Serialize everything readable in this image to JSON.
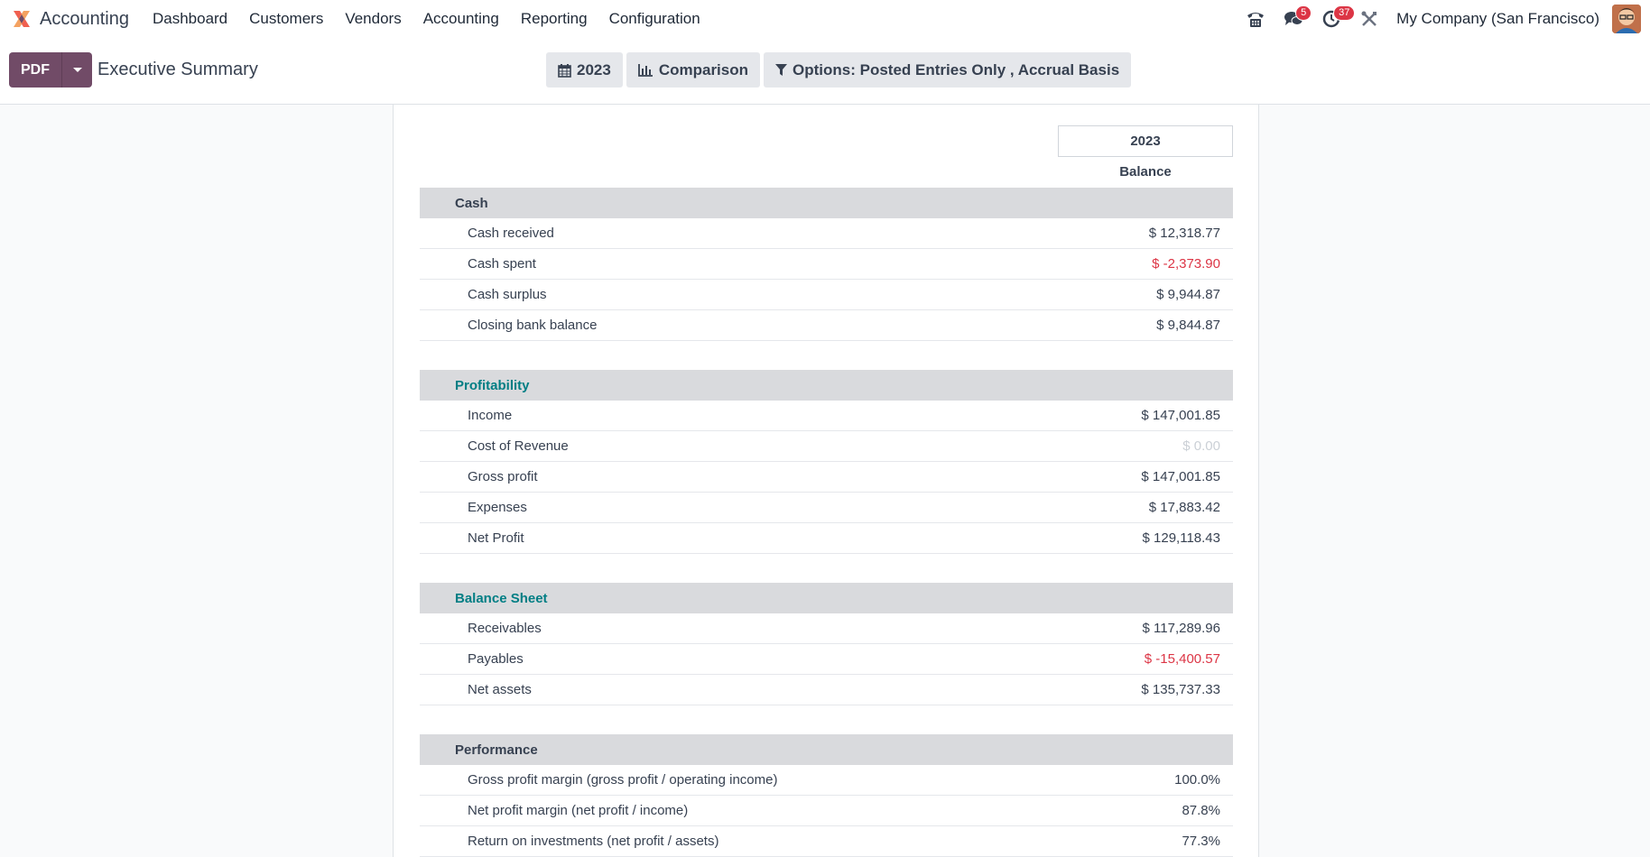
{
  "navbar": {
    "app_name": "Accounting",
    "menu": [
      "Dashboard",
      "Customers",
      "Vendors",
      "Accounting",
      "Reporting",
      "Configuration"
    ],
    "messages_badge": "5",
    "activities_badge": "37",
    "company": "My Company (San Francisco)"
  },
  "control_panel": {
    "pdf_label": "PDF",
    "title": "Executive Summary",
    "filter_period": "2023",
    "filter_comparison": "Comparison",
    "filter_options": "Options: Posted Entries Only , Accrual Basis"
  },
  "report": {
    "column_header": "2023",
    "column_subheader": "Balance",
    "sections": [
      {
        "title": "Cash",
        "rows": [
          {
            "label": "Cash received",
            "value": "$ 12,318.77"
          },
          {
            "label": "Cash spent",
            "value": "$ -2,373.90"
          },
          {
            "label": "Cash surplus",
            "value": "$ 9,944.87"
          },
          {
            "label": "Closing bank balance",
            "value": "$ 9,844.87"
          }
        ]
      },
      {
        "title": "Profitability",
        "rows": [
          {
            "label": "Income",
            "value": "$ 147,001.85"
          },
          {
            "label": "Cost of Revenue",
            "value": "$ 0.00"
          },
          {
            "label": "Gross profit",
            "value": "$ 147,001.85"
          },
          {
            "label": "Expenses",
            "value": "$ 17,883.42"
          },
          {
            "label": "Net Profit",
            "value": "$ 129,118.43"
          }
        ]
      },
      {
        "title": "Balance Sheet",
        "rows": [
          {
            "label": "Receivables",
            "value": "$ 117,289.96"
          },
          {
            "label": "Payables",
            "value": "$ -15,400.57"
          },
          {
            "label": "Net assets",
            "value": "$ 135,737.33"
          }
        ]
      },
      {
        "title": "Performance",
        "rows": [
          {
            "label": "Gross profit margin (gross profit / operating income)",
            "value": "100.0%"
          },
          {
            "label": "Net profit margin (net profit / income)",
            "value": "87.8%"
          },
          {
            "label": "Return on investments (net profit / assets)",
            "value": "77.3%"
          }
        ]
      }
    ]
  },
  "colors": {
    "brand": "#714b67",
    "section_teal": "#017e84",
    "negative": "#dc3545",
    "section_bg": "#d9dadd"
  },
  "icons": [
    "app-logo-icon",
    "phone-icon",
    "chat-icon",
    "clock-icon",
    "tools-icon",
    "calendar-icon",
    "bar-chart-icon",
    "filter-icon",
    "caret-down-icon"
  ]
}
